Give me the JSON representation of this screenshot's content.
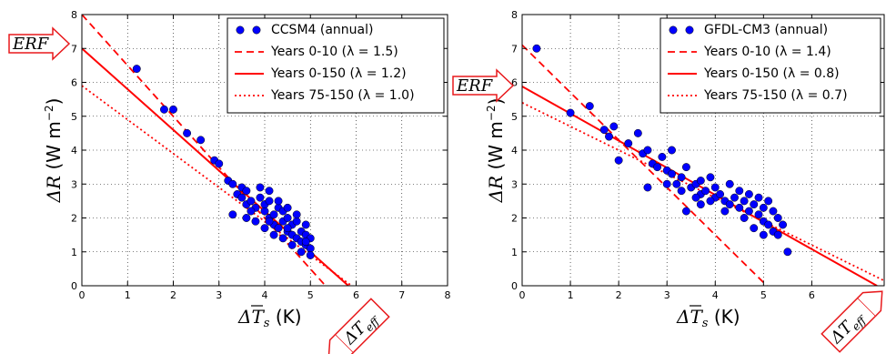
{
  "chart_data": [
    {
      "type": "scatter",
      "model": "CCSM4",
      "xlabel": "ΔT̄s (K)",
      "ylabel": "ΔR̄ (W m⁻²)",
      "xlim": [
        0,
        8
      ],
      "ylim": [
        0,
        8
      ],
      "xticks": [
        0,
        1,
        2,
        3,
        4,
        5,
        6,
        7,
        8
      ],
      "yticks": [
        0,
        1,
        2,
        3,
        4,
        5,
        6,
        7,
        8
      ],
      "grid": true,
      "legend_position": "top-right",
      "legend": [
        "CCSM4 (annual)",
        "Years 0-10 (λ = 1.5)",
        "Years 0-150 (λ = 1.2)",
        "Years 75-150 (λ = 1.0)"
      ],
      "annotations": [
        "ERF",
        "ΔT_eff"
      ],
      "scatter": {
        "name": "CCSM4 (annual)",
        "color": "#0000ff",
        "points": [
          [
            1.2,
            6.4
          ],
          [
            1.8,
            5.2
          ],
          [
            2.0,
            5.2
          ],
          [
            2.3,
            4.5
          ],
          [
            2.6,
            4.3
          ],
          [
            2.9,
            3.7
          ],
          [
            3.0,
            3.6
          ],
          [
            3.2,
            3.1
          ],
          [
            3.3,
            3.0
          ],
          [
            3.4,
            2.7
          ],
          [
            3.5,
            2.6
          ],
          [
            3.5,
            2.9
          ],
          [
            3.6,
            2.4
          ],
          [
            3.7,
            2.5
          ],
          [
            3.6,
            2.8
          ],
          [
            3.8,
            2.3
          ],
          [
            3.9,
            2.6
          ],
          [
            4.0,
            2.2
          ],
          [
            4.0,
            2.4
          ],
          [
            4.1,
            2.0
          ],
          [
            4.1,
            2.5
          ],
          [
            4.2,
            2.1
          ],
          [
            4.2,
            1.8
          ],
          [
            4.3,
            2.3
          ],
          [
            4.3,
            1.7
          ],
          [
            4.4,
            1.9
          ],
          [
            4.4,
            2.2
          ],
          [
            4.5,
            1.6
          ],
          [
            4.5,
            2.0
          ],
          [
            4.6,
            1.5
          ],
          [
            4.6,
            1.8
          ],
          [
            4.7,
            1.4
          ],
          [
            4.7,
            1.9
          ],
          [
            4.8,
            1.3
          ],
          [
            4.8,
            1.6
          ],
          [
            4.9,
            1.2
          ],
          [
            4.9,
            1.5
          ],
          [
            5.0,
            1.1
          ],
          [
            5.0,
            1.4
          ],
          [
            5.0,
            0.9
          ],
          [
            3.9,
            2.9
          ],
          [
            4.1,
            2.8
          ],
          [
            4.3,
            2.5
          ],
          [
            4.5,
            2.3
          ],
          [
            4.7,
            2.1
          ],
          [
            4.9,
            1.8
          ],
          [
            3.3,
            2.1
          ],
          [
            3.6,
            2.0
          ],
          [
            3.8,
            1.9
          ],
          [
            4.0,
            1.7
          ],
          [
            4.2,
            1.5
          ],
          [
            4.4,
            1.4
          ],
          [
            4.6,
            1.2
          ],
          [
            4.8,
            1.0
          ],
          [
            3.7,
            2.2
          ],
          [
            4.1,
            1.9
          ],
          [
            4.5,
            1.7
          ],
          [
            4.9,
            1.3
          ]
        ]
      },
      "lines": [
        {
          "name": "Years 0-10 (λ = 1.5)",
          "style": "dashed",
          "color": "#ff0000",
          "x": [
            0,
            5.33
          ],
          "y": [
            8.0,
            0
          ]
        },
        {
          "name": "Years 0-150 (λ = 1.2)",
          "style": "solid",
          "color": "#ff0000",
          "x": [
            0,
            5.83
          ],
          "y": [
            7.0,
            0
          ]
        },
        {
          "name": "Years 75-150 (λ = 1.0)",
          "style": "dotted",
          "color": "#ff0000",
          "x": [
            0,
            5.9
          ],
          "y": [
            5.9,
            0
          ]
        }
      ]
    },
    {
      "type": "scatter",
      "model": "GFDL-CM3",
      "xlabel": "ΔT̄s (K)",
      "ylabel": "ΔR̄ (W m⁻²)",
      "xlim": [
        0,
        7.5
      ],
      "ylim": [
        0,
        8
      ],
      "xticks": [
        0,
        1,
        2,
        3,
        4,
        5,
        6
      ],
      "yticks": [
        0,
        1,
        2,
        3,
        4,
        5,
        6,
        7,
        8
      ],
      "grid": true,
      "legend_position": "top-right",
      "legend": [
        "GFDL-CM3 (annual)",
        "Years 0-10 (λ = 1.4)",
        "Years 0-150 (λ = 0.8)",
        "Years 75-150 (λ = 0.7)"
      ],
      "annotations": [
        "ERF",
        "ΔT_eff"
      ],
      "scatter": {
        "name": "GFDL-CM3 (annual)",
        "color": "#0000ff",
        "points": [
          [
            0.3,
            7.0
          ],
          [
            1.0,
            5.1
          ],
          [
            1.4,
            5.3
          ],
          [
            1.7,
            4.6
          ],
          [
            1.8,
            4.4
          ],
          [
            1.9,
            4.7
          ],
          [
            2.0,
            3.7
          ],
          [
            2.2,
            4.2
          ],
          [
            2.4,
            4.5
          ],
          [
            2.5,
            3.9
          ],
          [
            2.6,
            4.0
          ],
          [
            2.7,
            3.6
          ],
          [
            2.8,
            3.5
          ],
          [
            2.9,
            3.8
          ],
          [
            3.0,
            3.4
          ],
          [
            3.1,
            3.3
          ],
          [
            3.1,
            4.0
          ],
          [
            3.2,
            3.0
          ],
          [
            3.3,
            3.2
          ],
          [
            3.4,
            3.5
          ],
          [
            3.5,
            2.9
          ],
          [
            3.6,
            3.0
          ],
          [
            3.7,
            3.1
          ],
          [
            3.7,
            2.7
          ],
          [
            3.8,
            2.8
          ],
          [
            3.9,
            3.2
          ],
          [
            4.0,
            2.6
          ],
          [
            4.0,
            2.9
          ],
          [
            4.1,
            2.7
          ],
          [
            4.2,
            2.5
          ],
          [
            4.3,
            3.0
          ],
          [
            4.3,
            2.4
          ],
          [
            4.4,
            2.6
          ],
          [
            4.5,
            2.3
          ],
          [
            4.5,
            2.8
          ],
          [
            4.6,
            2.5
          ],
          [
            4.7,
            2.2
          ],
          [
            4.7,
            2.7
          ],
          [
            4.8,
            2.4
          ],
          [
            4.9,
            2.1
          ],
          [
            4.9,
            2.6
          ],
          [
            5.0,
            2.3
          ],
          [
            5.0,
            1.9
          ],
          [
            5.1,
            2.5
          ],
          [
            5.1,
            1.8
          ],
          [
            5.2,
            2.2
          ],
          [
            5.2,
            1.6
          ],
          [
            5.3,
            2.0
          ],
          [
            5.3,
            1.5
          ],
          [
            5.4,
            1.8
          ],
          [
            5.5,
            1.0
          ],
          [
            2.6,
            2.9
          ],
          [
            3.0,
            3.0
          ],
          [
            3.3,
            2.8
          ],
          [
            3.6,
            2.6
          ],
          [
            3.9,
            2.5
          ],
          [
            4.2,
            2.2
          ],
          [
            4.6,
            2.0
          ],
          [
            4.8,
            1.7
          ],
          [
            5.0,
            1.5
          ],
          [
            3.4,
            2.2
          ],
          [
            3.7,
            2.4
          ]
        ]
      },
      "lines": [
        {
          "name": "Years 0-10 (λ = 1.4)",
          "style": "dashed",
          "color": "#ff0000",
          "x": [
            0,
            5.07
          ],
          "y": [
            7.1,
            0
          ]
        },
        {
          "name": "Years 0-150 (λ = 0.8)",
          "style": "solid",
          "color": "#ff0000",
          "x": [
            0,
            7.35
          ],
          "y": [
            5.88,
            0
          ]
        },
        {
          "name": "Years 75-150 (λ = 0.7)",
          "style": "dotted",
          "color": "#ff0000",
          "x": [
            0,
            7.5
          ],
          "y": [
            5.4,
            0.15
          ]
        }
      ]
    }
  ]
}
